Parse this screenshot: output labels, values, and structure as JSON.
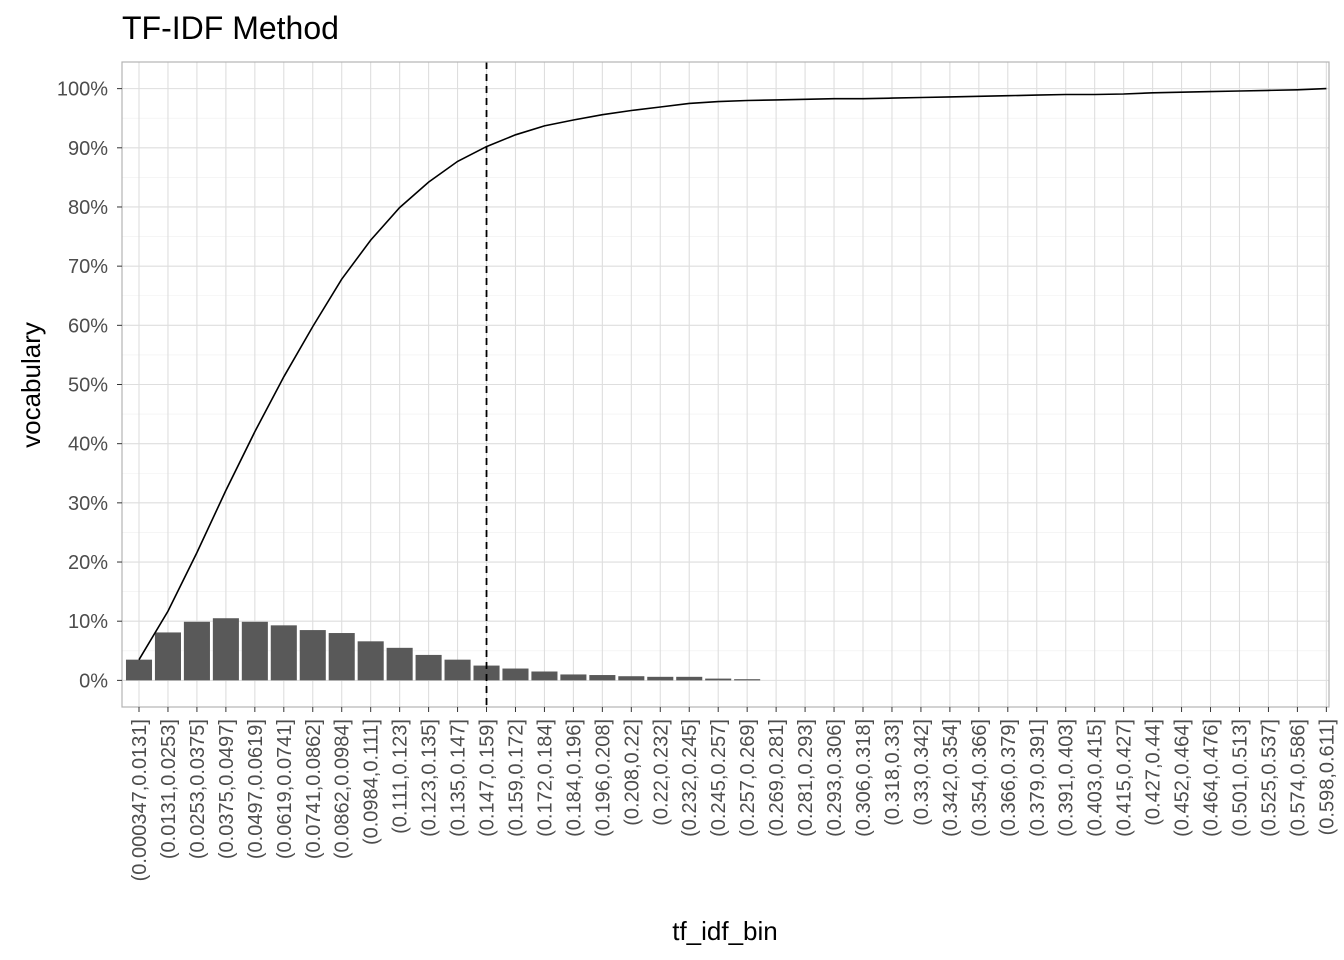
{
  "chart_data": {
    "type": "bar",
    "title": "TF-IDF Method",
    "xlabel": "tf_idf_bin",
    "ylabel": "vocabulary",
    "ylim": [
      -0.045,
      1.045
    ],
    "y_ticks": [
      "0%",
      "10%",
      "20%",
      "30%",
      "40%",
      "50%",
      "60%",
      "70%",
      "80%",
      "90%",
      "100%"
    ],
    "grid": true,
    "categories": [
      "(0.000347,0.0131]",
      "(0.0131,0.0253]",
      "(0.0253,0.0375]",
      "(0.0375,0.0497]",
      "(0.0497,0.0619]",
      "(0.0619,0.0741]",
      "(0.0741,0.0862]",
      "(0.0862,0.0984]",
      "(0.0984,0.111]",
      "(0.111,0.123]",
      "(0.123,0.135]",
      "(0.135,0.147]",
      "(0.147,0.159]",
      "(0.159,0.172]",
      "(0.172,0.184]",
      "(0.184,0.196]",
      "(0.196,0.208]",
      "(0.208,0.22]",
      "(0.22,0.232]",
      "(0.232,0.245]",
      "(0.245,0.257]",
      "(0.257,0.269]",
      "(0.269,0.281]",
      "(0.281,0.293]",
      "(0.293,0.306]",
      "(0.306,0.318]",
      "(0.318,0.33]",
      "(0.33,0.342]",
      "(0.342,0.354]",
      "(0.354,0.366]",
      "(0.366,0.379]",
      "(0.379,0.391]",
      "(0.391,0.403]",
      "(0.403,0.415]",
      "(0.415,0.427]",
      "(0.427,0.44]",
      "(0.452,0.464]",
      "(0.464,0.476]",
      "(0.501,0.513]",
      "(0.525,0.537]",
      "(0.574,0.586]",
      "(0.598,0.611]"
    ],
    "series": [
      {
        "type": "bar",
        "color": "#595959",
        "values": [
          0.035,
          0.081,
          0.099,
          0.105,
          0.099,
          0.093,
          0.085,
          0.08,
          0.066,
          0.055,
          0.043,
          0.035,
          0.025,
          0.02,
          0.015,
          0.01,
          0.009,
          0.007,
          0.006,
          0.006,
          0.003,
          0.002,
          0,
          0,
          0,
          0,
          0,
          0,
          0,
          0,
          0,
          0,
          0,
          0,
          0,
          0,
          0,
          0,
          0,
          0,
          0,
          0
        ]
      },
      {
        "type": "line",
        "color": "#000000",
        "values": [
          0.035,
          0.117,
          0.216,
          0.321,
          0.42,
          0.513,
          0.598,
          0.678,
          0.744,
          0.799,
          0.842,
          0.877,
          0.902,
          0.922,
          0.937,
          0.947,
          0.956,
          0.963,
          0.969,
          0.975,
          0.978,
          0.98,
          0.981,
          0.982,
          0.983,
          0.983,
          0.984,
          0.985,
          0.986,
          0.987,
          0.988,
          0.989,
          0.99,
          0.99,
          0.991,
          0.993,
          0.994,
          0.995,
          0.996,
          0.997,
          0.998,
          1.0
        ]
      }
    ],
    "reference_line": {
      "x_category": "(0.147,0.159]",
      "style": "dashed",
      "color": "#000000"
    }
  }
}
